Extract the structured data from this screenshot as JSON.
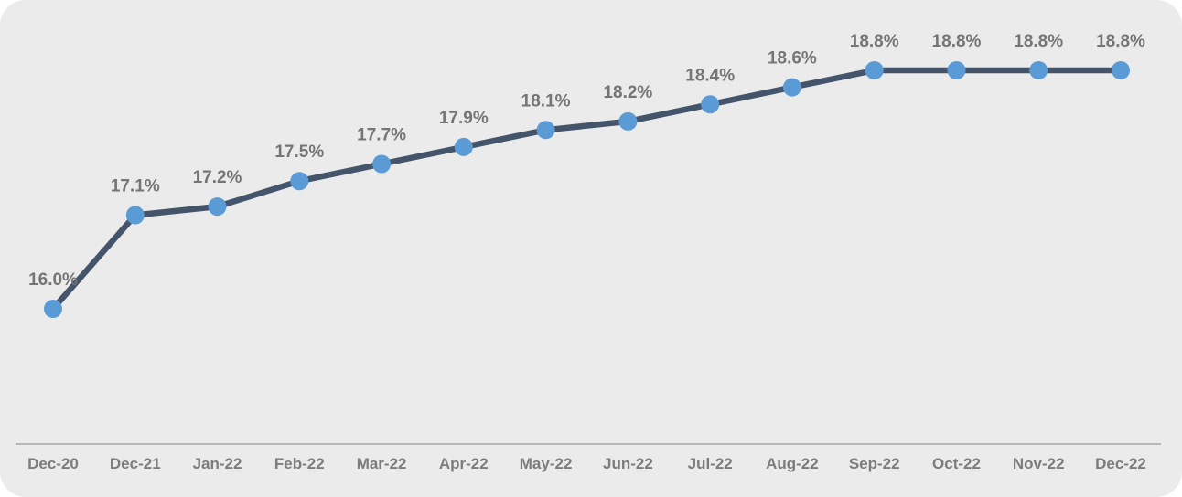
{
  "chart_data": {
    "type": "line",
    "categories": [
      "Dec-20",
      "Dec-21",
      "Jan-22",
      "Feb-22",
      "Mar-22",
      "Apr-22",
      "May-22",
      "Jun-22",
      "Jul-22",
      "Aug-22",
      "Sep-22",
      "Oct-22",
      "Nov-22",
      "Dec-22"
    ],
    "series": [
      {
        "name": "percentage-series",
        "values": [
          16.0,
          17.1,
          17.2,
          17.5,
          17.7,
          17.9,
          18.1,
          18.2,
          18.4,
          18.6,
          18.8,
          18.8,
          18.8,
          18.8
        ]
      }
    ],
    "data_labels": [
      "16.0%",
      "17.1%",
      "17.2%",
      "17.5%",
      "17.7%",
      "17.9%",
      "18.1%",
      "18.2%",
      "18.4%",
      "18.6%",
      "18.8%",
      "18.8%",
      "18.8%",
      "18.8%"
    ],
    "title": "",
    "xlabel": "",
    "ylabel": "",
    "ylim": [
      14.4,
      19.6
    ],
    "grid": false,
    "legend": "none",
    "markers": true,
    "colors": {
      "line": "#44546A",
      "marker": "#5B9BD5",
      "data_label": "#757575",
      "axis_label": "#7C7C7C",
      "axis_line": "#A6A6A6",
      "background": "#EBEBEB"
    }
  }
}
